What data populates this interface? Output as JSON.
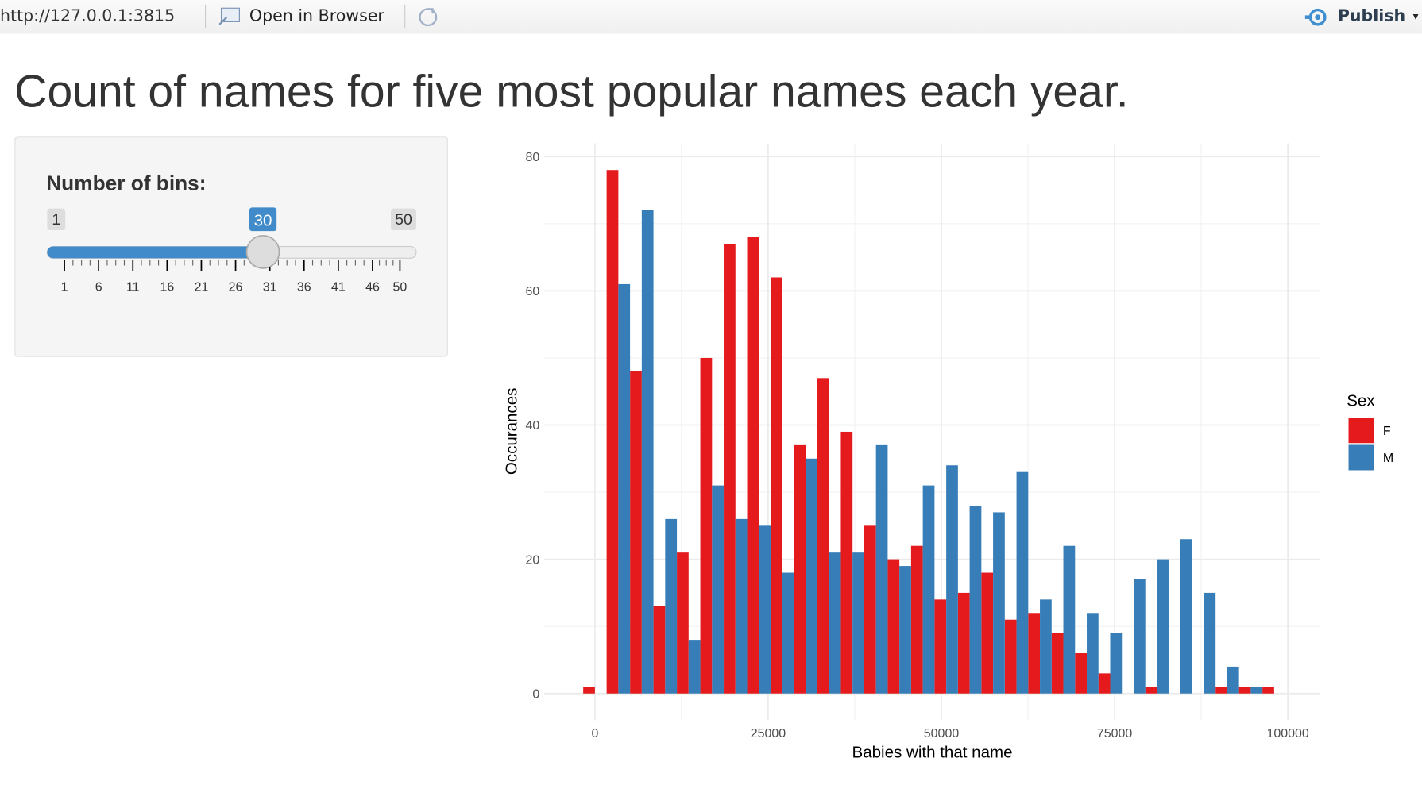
{
  "toolbar": {
    "url": "http://127.0.0.1:3815",
    "open_button": "Open in Browser",
    "publish_button": "Publish"
  },
  "title": "Count of names for five most popular names each year.",
  "sidebar": {
    "slider": {
      "label": "Number of bins:",
      "min": 1,
      "max": 50,
      "value": 30,
      "ticks": [
        1,
        6,
        11,
        16,
        21,
        26,
        31,
        36,
        41,
        46,
        50
      ]
    }
  },
  "chart_data": {
    "type": "histogram",
    "x_label": "Babies with that name",
    "y_label": "Occurances",
    "legend_title": "Sex",
    "legend_position": "right",
    "bins": [
      -1690,
      1690,
      5070,
      8450,
      11830,
      15210,
      18590,
      21970,
      25350,
      28730,
      32110,
      35490,
      38870,
      42250,
      45630,
      49010,
      52390,
      55770,
      59150,
      62530,
      65910,
      69290,
      72670,
      76050,
      79430,
      82810,
      86190,
      89570,
      92950,
      96330,
      99710
    ],
    "series": [
      {
        "name": "F",
        "color": "#e41a1c",
        "values": [
          1,
          78,
          48,
          13,
          21,
          50,
          67,
          68,
          62,
          37,
          47,
          39,
          25,
          20,
          22,
          14,
          15,
          18,
          11,
          12,
          9,
          6,
          3,
          0,
          1,
          0,
          0,
          1,
          1,
          1
        ]
      },
      {
        "name": "M",
        "color": "#377eb8",
        "values": [
          0,
          61,
          72,
          26,
          8,
          31,
          26,
          25,
          18,
          35,
          21,
          21,
          37,
          19,
          31,
          34,
          28,
          27,
          33,
          14,
          22,
          12,
          9,
          17,
          20,
          23,
          15,
          4,
          1,
          0
        ]
      }
    ],
    "xlim": [
      -7330,
      104700
    ],
    "ylim": [
      -4,
      82
    ],
    "xticks": [
      0,
      25000,
      50000,
      75000,
      100000
    ],
    "yticks": [
      0,
      20,
      40,
      60,
      80
    ],
    "grid": true
  }
}
